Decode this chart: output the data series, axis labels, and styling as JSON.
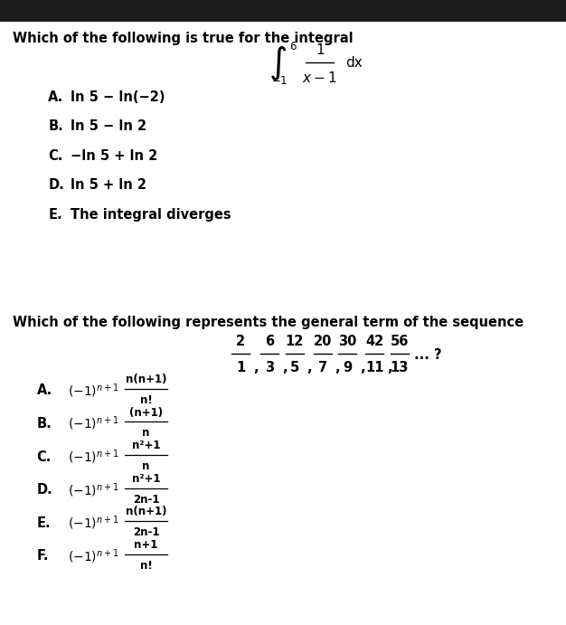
{
  "bg_color": "#ffffff",
  "header_bg": "#1a1a1a",
  "q1_title": "Which of the following is true for the integral",
  "q1_options": [
    [
      "A.",
      "ln 5 − ln(−2)"
    ],
    [
      "B.",
      "ln 5 − ln 2"
    ],
    [
      "C.",
      "−ln 5 + ln 2"
    ],
    [
      "D.",
      "ln 5 + ln 2"
    ],
    [
      "E.",
      "The integral diverges"
    ]
  ],
  "q2_title": "Which of the following represents the general term of the sequence",
  "q2_seq_nums": [
    "2",
    "6",
    "12",
    "20",
    "30",
    "42",
    "56"
  ],
  "q2_seq_dens": [
    "1",
    "3",
    "5",
    "7",
    "9",
    "11",
    "13"
  ],
  "q2_options_label": [
    "A.",
    "B.",
    "C.",
    "D.",
    "E.",
    "F."
  ],
  "q2_frac_num": [
    "n(n+1)",
    "(n+1)",
    "n²+1",
    "n²+1",
    "n(n+1)",
    "n+1"
  ],
  "q2_frac_den": [
    "n!",
    "n",
    "n",
    "2n-1",
    "2n-1",
    "n!"
  ],
  "title_fs": 10.5,
  "option_fs": 10.5,
  "math_fs": 10.0
}
